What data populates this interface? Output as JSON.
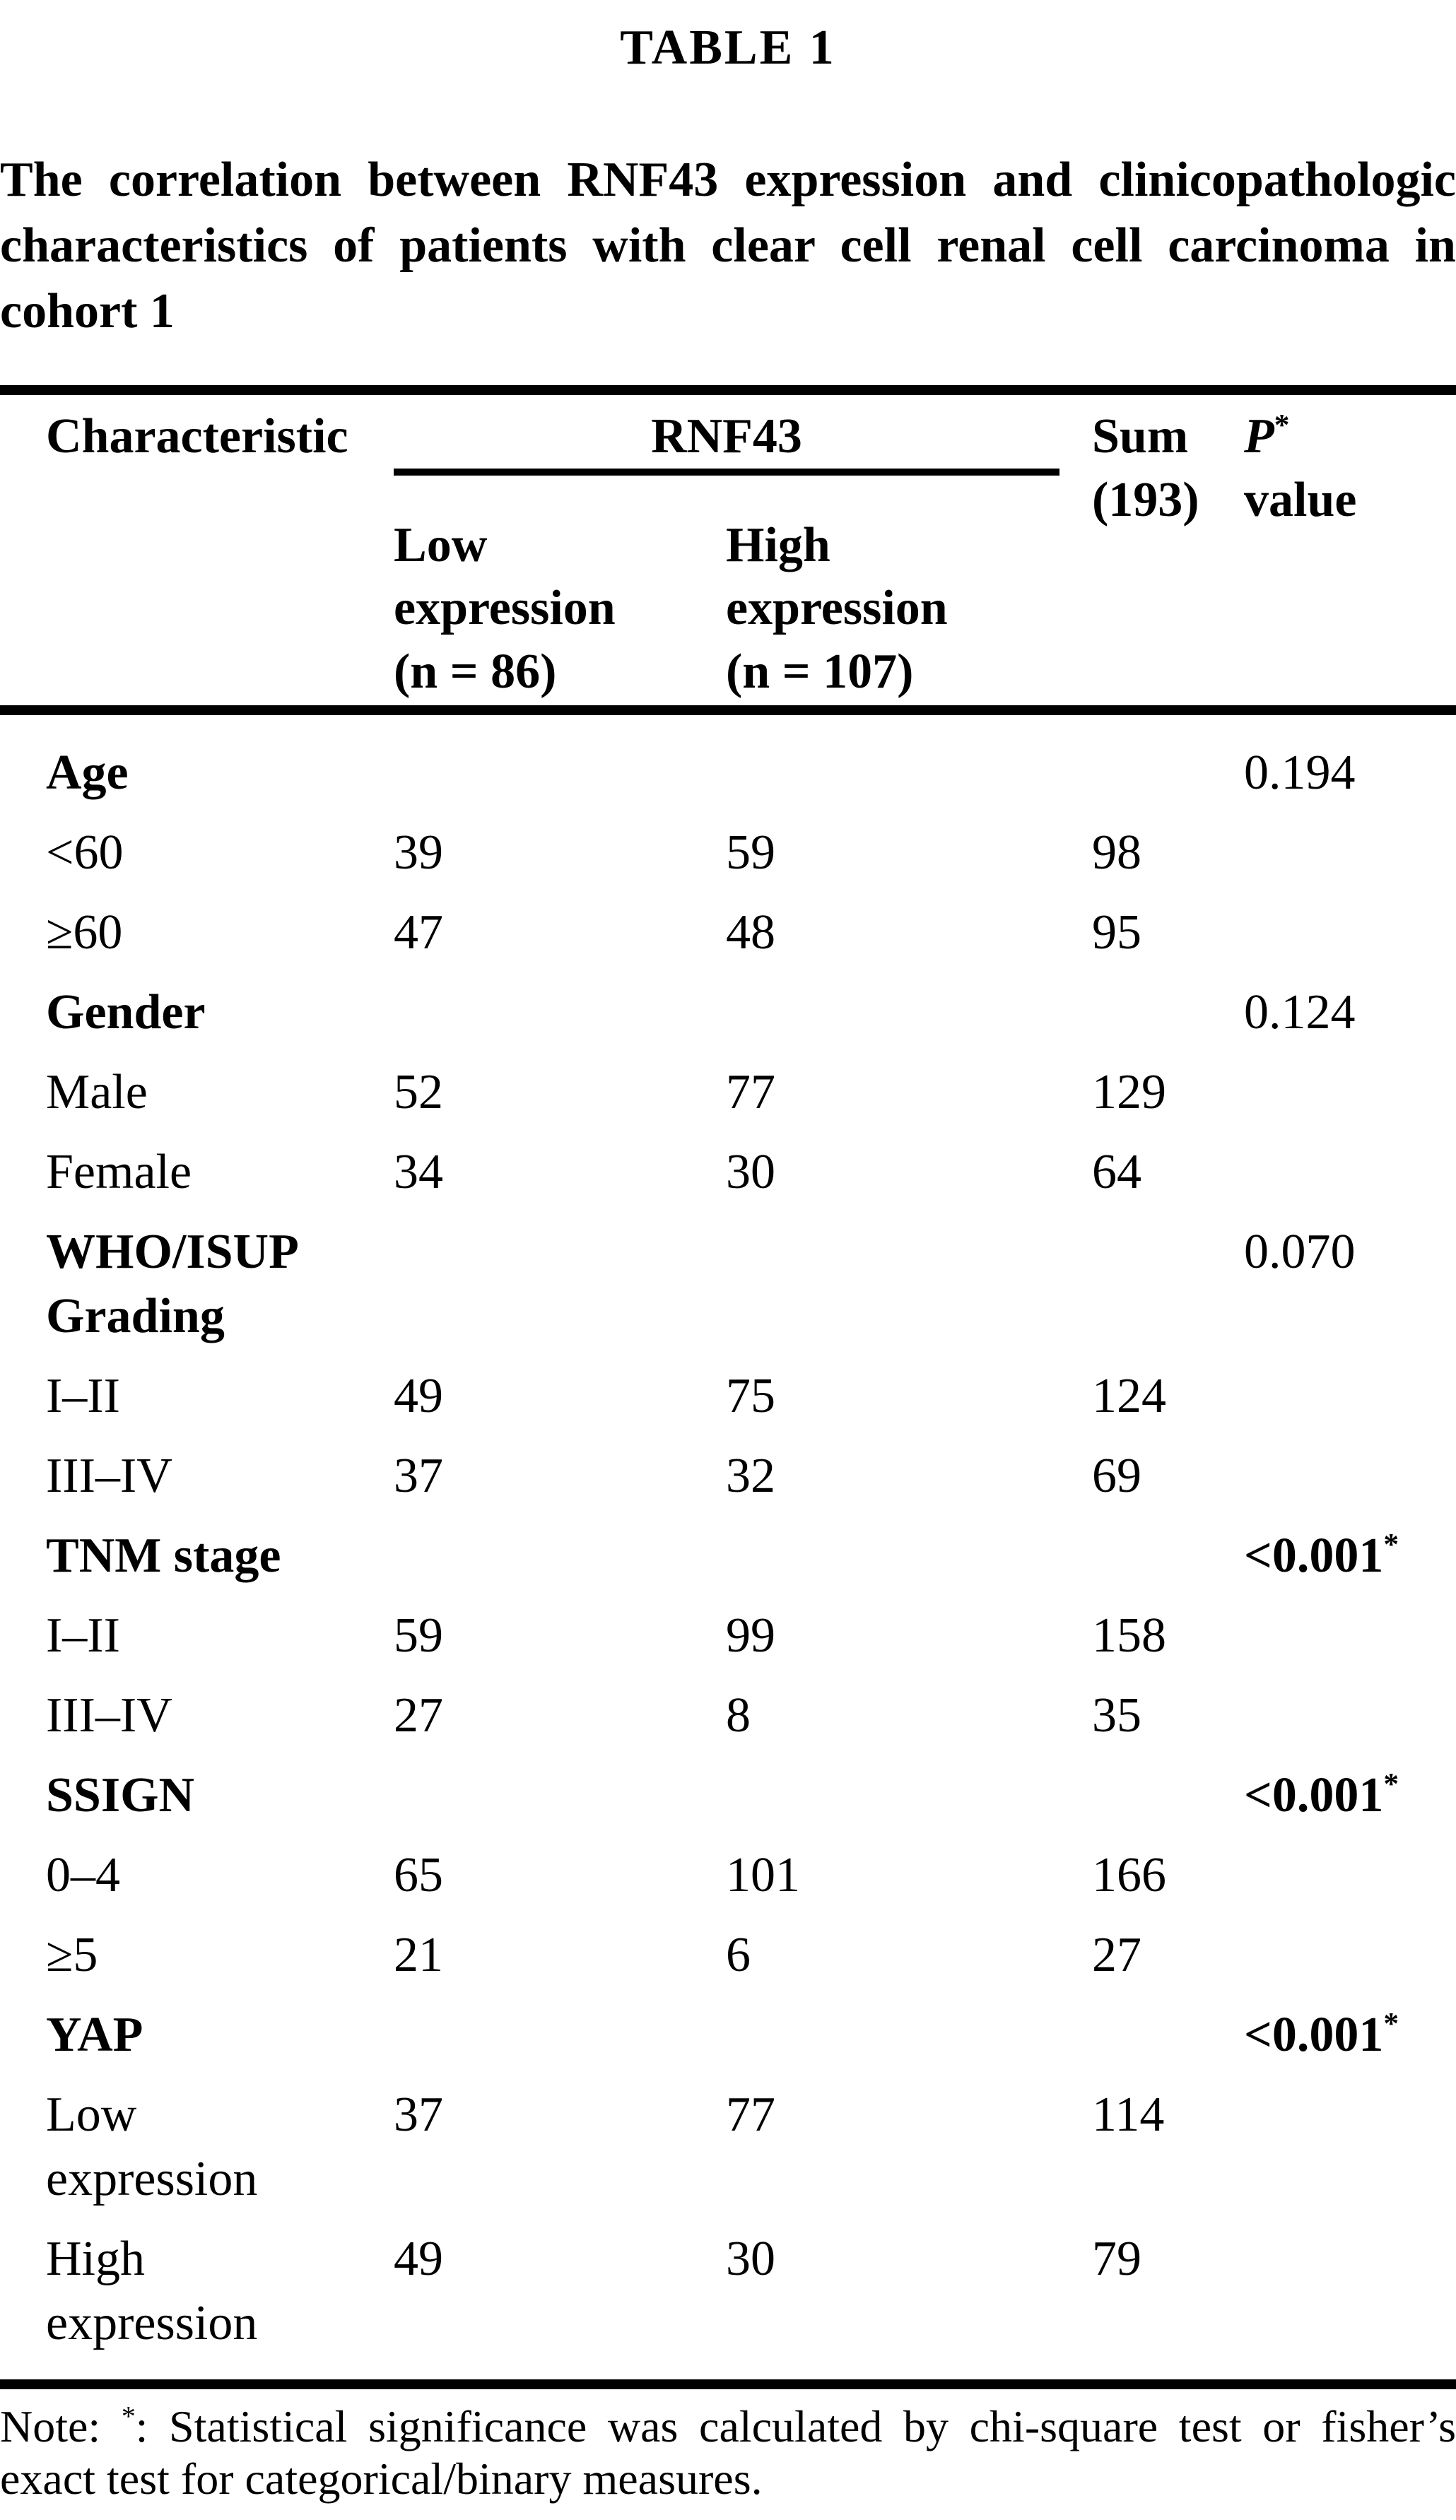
{
  "table_label": "TABLE 1",
  "caption": "The correlation between RNF43 expression and clinicopathologic characteristics of patients with clear cell renal cell carcinoma in cohort 1",
  "header": {
    "characteristic": "Characteristic",
    "group": "RNF43",
    "low": "Low expression (n = 86)",
    "high": "High expression (n = 107)",
    "sum": "Sum",
    "sum_n": "(193)",
    "p": "P",
    "p_star": "*",
    "p_value": "value"
  },
  "rows": [
    {
      "label": "Age",
      "p": "0.194"
    },
    {
      "label": "<60",
      "low": "39",
      "high": "59",
      "sum": "98"
    },
    {
      "label": "≥60",
      "low": "47",
      "high": "48",
      "sum": "95"
    },
    {
      "label": "Gender",
      "p": "0.124"
    },
    {
      "label": "Male",
      "low": "52",
      "high": "77",
      "sum": "129"
    },
    {
      "label": "Female",
      "low": "34",
      "high": "30",
      "sum": "64"
    },
    {
      "label": "WHO/ISUP Grading",
      "p": "0.070"
    },
    {
      "label": "I–II",
      "low": "49",
      "high": "75",
      "sum": "124"
    },
    {
      "label": "III–IV",
      "low": "37",
      "high": "32",
      "sum": "69"
    },
    {
      "label": "TNM stage",
      "p": "<0.001",
      "p_star": "*"
    },
    {
      "label": "I–II",
      "low": "59",
      "high": "99",
      "sum": "158"
    },
    {
      "label": "III–IV",
      "low": "27",
      "high": "8",
      "sum": "35"
    },
    {
      "label": "SSIGN",
      "p": "<0.001",
      "p_star": "*"
    },
    {
      "label": "0–4",
      "low": "65",
      "high": "101",
      "sum": "166"
    },
    {
      "label": "≥5",
      "low": "21",
      "high": "6",
      "sum": "27"
    },
    {
      "label": "YAP",
      "p": "<0.001",
      "p_star": "*"
    },
    {
      "label": "Low expression",
      "low": "37",
      "high": "77",
      "sum": "114"
    },
    {
      "label": "High expression",
      "low": "49",
      "high": "30",
      "sum": "79"
    }
  ],
  "note": {
    "prefix": "Note: ",
    "star": "*",
    "text": ": Statistical significance was calculated by chi-square test or fisher’s exact test for categorical/binary measures."
  }
}
